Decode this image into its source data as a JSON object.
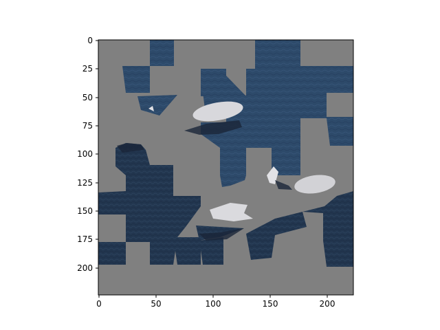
{
  "image": {
    "description_free": true,
    "extent": {
      "x": [
        0,
        224
      ],
      "y": [
        0,
        224
      ]
    },
    "background_color": "#808080",
    "water_color": "#2b4766",
    "ice_color": "#d6d6da"
  },
  "axes": {
    "x_ticks": [
      "0",
      "50",
      "100",
      "150",
      "200"
    ],
    "y_ticks": [
      "0",
      "25",
      "50",
      "75",
      "100",
      "125",
      "150",
      "175",
      "200"
    ],
    "x_tick_values": [
      0,
      50,
      100,
      150,
      200
    ],
    "y_tick_values": [
      0,
      25,
      50,
      75,
      100,
      125,
      150,
      175,
      200
    ]
  }
}
